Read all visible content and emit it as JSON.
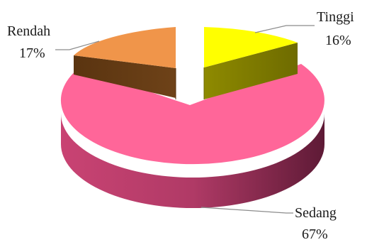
{
  "chart_data": {
    "type": "pie",
    "style": "3d-exploded",
    "categories": [
      "Tinggi",
      "Sedang",
      "Rendah"
    ],
    "values": [
      16,
      67,
      17
    ],
    "value_labels": [
      "16%",
      "67%",
      "17%"
    ],
    "colors": {
      "Tinggi": "#ffff00",
      "Sedang": "#ff6699",
      "Rendah": "#f0954a"
    },
    "title": "",
    "legend": "none"
  }
}
